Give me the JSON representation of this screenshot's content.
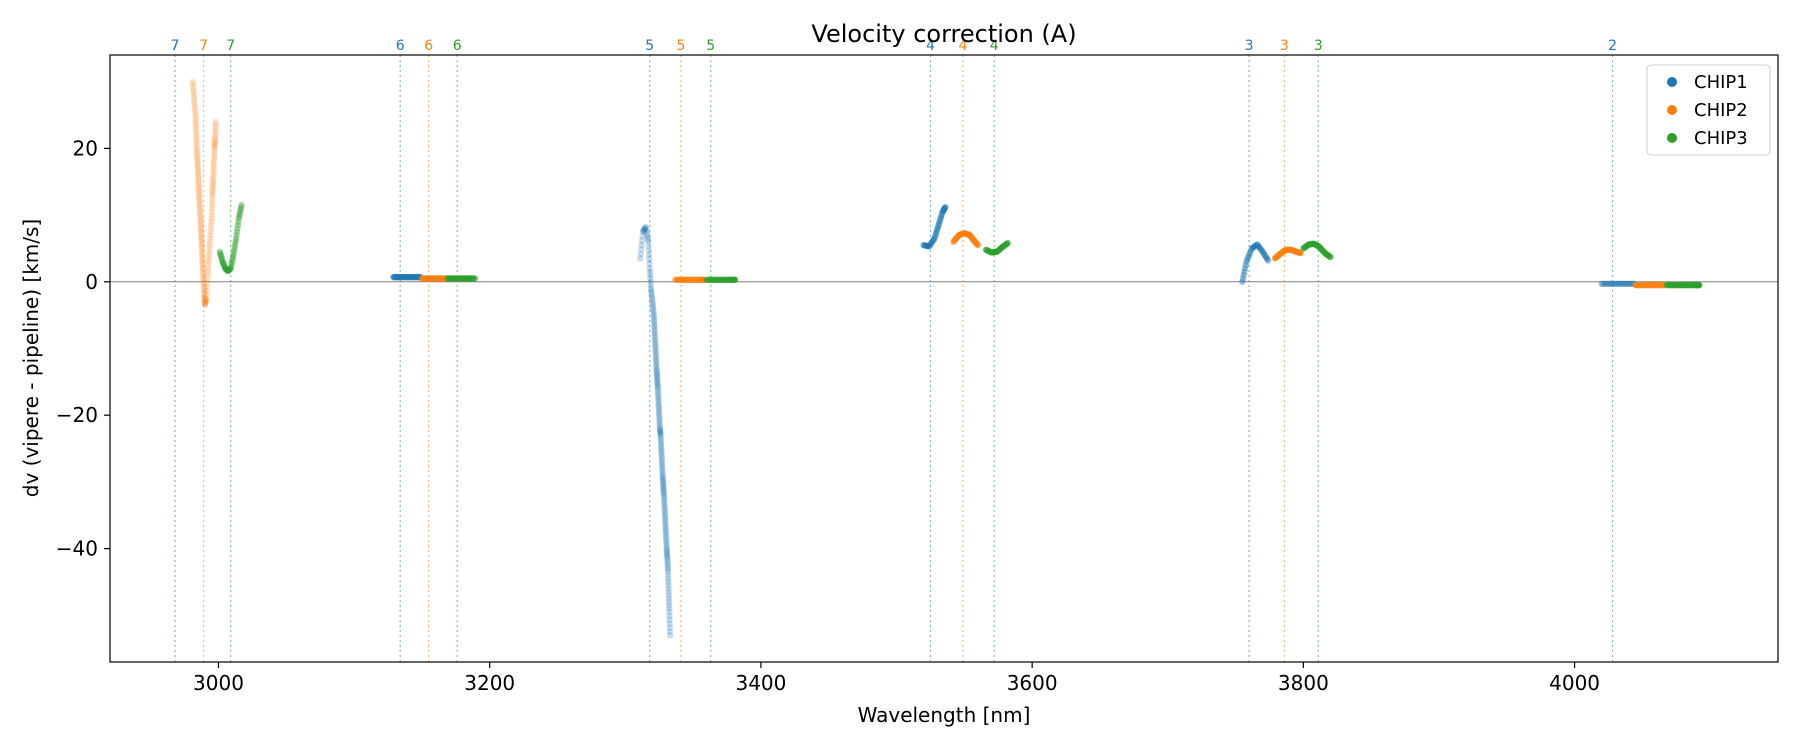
{
  "chart_data": {
    "type": "scatter",
    "title": "Velocity correction (A)",
    "xlabel": "Wavelength [nm]",
    "ylabel": "dv (vipere - pipeline) [km/s]",
    "xlim": [
      2920,
      4150
    ],
    "ylim": [
      -57,
      34
    ],
    "xticks": [
      3000,
      3200,
      3400,
      3600,
      3800,
      4000
    ],
    "xtick_labels": [
      "3000",
      "3200",
      "3400",
      "3600",
      "3800",
      "4000"
    ],
    "yticks": [
      -40,
      -20,
      0,
      20
    ],
    "ytick_labels": [
      "−40",
      "−20",
      "0",
      "20"
    ],
    "zero_line": 0,
    "legend": {
      "placement": "top-right",
      "entries": [
        "CHIP1",
        "CHIP2",
        "CHIP3"
      ]
    },
    "colors": {
      "CHIP1": "#1f77b4",
      "CHIP2": "#ff7f0e",
      "CHIP3": "#2ca02c",
      "zero_line": "#808080"
    },
    "order_markers": [
      {
        "order": "7",
        "chip": "CHIP1",
        "wavelength": 2968
      },
      {
        "order": "7",
        "chip": "CHIP2",
        "wavelength": 2989
      },
      {
        "order": "7",
        "chip": "CHIP3",
        "wavelength": 3009
      },
      {
        "order": "6",
        "chip": "CHIP1",
        "wavelength": 3134
      },
      {
        "order": "6",
        "chip": "CHIP2",
        "wavelength": 3155
      },
      {
        "order": "6",
        "chip": "CHIP3",
        "wavelength": 3176
      },
      {
        "order": "5",
        "chip": "CHIP1",
        "wavelength": 3318
      },
      {
        "order": "5",
        "chip": "CHIP2",
        "wavelength": 3341
      },
      {
        "order": "5",
        "chip": "CHIP3",
        "wavelength": 3363
      },
      {
        "order": "4",
        "chip": "CHIP1",
        "wavelength": 3525
      },
      {
        "order": "4",
        "chip": "CHIP2",
        "wavelength": 3549
      },
      {
        "order": "4",
        "chip": "CHIP3",
        "wavelength": 3572
      },
      {
        "order": "3",
        "chip": "CHIP1",
        "wavelength": 3760
      },
      {
        "order": "3",
        "chip": "CHIP2",
        "wavelength": 3786
      },
      {
        "order": "3",
        "chip": "CHIP3",
        "wavelength": 3811
      },
      {
        "order": "2",
        "chip": "CHIP1",
        "wavelength": 4028
      }
    ],
    "series": [
      {
        "name": "CHIP1",
        "segments": [
          {
            "opacity": 0.6,
            "points": [
              [
                3129,
                0.7
              ],
              [
                3134,
                0.7
              ],
              [
                3139,
                0.7
              ],
              [
                3144,
                0.7
              ],
              [
                3149,
                0.7
              ]
            ]
          },
          {
            "opacity": 0.25,
            "points": [
              [
                3311,
                3.5
              ],
              [
                3313,
                7.5
              ],
              [
                3315,
                8.2
              ],
              [
                3317,
                6
              ],
              [
                3318,
                2
              ],
              [
                3319,
                -1
              ],
              [
                3320,
                -3
              ],
              [
                3321,
                -5
              ],
              [
                3321.5,
                -7
              ],
              [
                3322,
                -9
              ],
              [
                3322.5,
                -11
              ],
              [
                3323,
                -13
              ],
              [
                3323.5,
                -14.5
              ],
              [
                3324,
                -16
              ],
              [
                3324.5,
                -18
              ],
              [
                3325,
                -20
              ],
              [
                3325.5,
                -22
              ],
              [
                3326,
                -23
              ],
              [
                3326.5,
                -25
              ],
              [
                3327,
                -27
              ],
              [
                3327.5,
                -29
              ],
              [
                3328,
                -30.5
              ],
              [
                3328.5,
                -32
              ],
              [
                3329,
                -34
              ],
              [
                3329.5,
                -36
              ],
              [
                3330,
                -38
              ],
              [
                3330.5,
                -40
              ],
              [
                3331,
                -41.5
              ],
              [
                3331.5,
                -43.5
              ],
              [
                3332,
                -46.5
              ],
              [
                3332.5,
                -49.5
              ],
              [
                3333,
                -53
              ]
            ]
          },
          {
            "opacity": 0.5,
            "points": [
              [
                3520,
                5.5
              ],
              [
                3524,
                5.3
              ],
              [
                3528,
                6.5
              ],
              [
                3531,
                8.5
              ],
              [
                3534,
                10.5
              ],
              [
                3536,
                11.2
              ]
            ]
          },
          {
            "opacity": 0.45,
            "points": [
              [
                3755,
                0
              ],
              [
                3758,
                3
              ],
              [
                3762,
                5
              ],
              [
                3766,
                5.6
              ],
              [
                3770,
                4.5
              ],
              [
                3774,
                3.2
              ]
            ]
          },
          {
            "opacity": 0.45,
            "points": [
              [
                4020,
                -0.3
              ],
              [
                4028,
                -0.3
              ],
              [
                4036,
                -0.3
              ],
              [
                4044,
                -0.3
              ]
            ]
          }
        ]
      },
      {
        "name": "CHIP2",
        "segments": [
          {
            "opacity": 0.2,
            "points": [
              [
                2981,
                30
              ],
              [
                2982,
                27.5
              ],
              [
                2983,
                25
              ],
              [
                2983.5,
                22.5
              ],
              [
                2984,
                20
              ],
              [
                2984.5,
                18
              ],
              [
                2985,
                16
              ],
              [
                2985.5,
                14
              ],
              [
                2986,
                12
              ],
              [
                2986.5,
                10
              ],
              [
                2987,
                8
              ],
              [
                2987.5,
                6
              ],
              [
                2988,
                4
              ],
              [
                2988.5,
                2
              ],
              [
                2989,
                0
              ],
              [
                2989.5,
                -2
              ],
              [
                2990,
                -3.5
              ],
              [
                2991,
                -2.5
              ],
              [
                2992,
                1
              ],
              [
                2993,
                4
              ],
              [
                2994,
                7
              ],
              [
                2995,
                10
              ],
              [
                2995.5,
                13
              ],
              [
                2996,
                15
              ],
              [
                2996.5,
                17.5
              ],
              [
                2997,
                20
              ],
              [
                2997.5,
                21.5
              ],
              [
                2998,
                24
              ]
            ]
          },
          {
            "opacity": 0.6,
            "points": [
              [
                3150,
                0.5
              ],
              [
                3155,
                0.5
              ],
              [
                3160,
                0.5
              ],
              [
                3165,
                0.5
              ],
              [
                3170,
                0.5
              ]
            ]
          },
          {
            "opacity": 0.6,
            "points": [
              [
                3337,
                0.3
              ],
              [
                3343,
                0.3
              ],
              [
                3349,
                0.3
              ],
              [
                3355,
                0.3
              ],
              [
                3358,
                0.3
              ]
            ]
          },
          {
            "opacity": 0.6,
            "points": [
              [
                3542,
                6
              ],
              [
                3546,
                7
              ],
              [
                3550,
                7.3
              ],
              [
                3554,
                7
              ],
              [
                3557,
                6.2
              ],
              [
                3560,
                5.5
              ]
            ]
          },
          {
            "opacity": 0.6,
            "points": [
              [
                3779,
                3.5
              ],
              [
                3783,
                4.2
              ],
              [
                3787,
                4.8
              ],
              [
                3791,
                4.8
              ],
              [
                3795,
                4.5
              ],
              [
                3798,
                4.3
              ]
            ]
          },
          {
            "opacity": 0.7,
            "points": [
              [
                4045,
                -0.5
              ],
              [
                4052,
                -0.5
              ],
              [
                4059,
                -0.5
              ],
              [
                4066,
                -0.5
              ]
            ]
          }
        ]
      },
      {
        "name": "CHIP3",
        "segments": [
          {
            "opacity": 0.4,
            "points": [
              [
                3001,
                4.5
              ],
              [
                3003,
                3
              ],
              [
                3005,
                2
              ],
              [
                3007,
                1.6
              ],
              [
                3009,
                2
              ],
              [
                3011,
                4
              ],
              [
                3013,
                6.5
              ],
              [
                3015,
                9.5
              ],
              [
                3017,
                11.5
              ]
            ]
          },
          {
            "opacity": 0.6,
            "points": [
              [
                3169,
                0.5
              ],
              [
                3174,
                0.5
              ],
              [
                3179,
                0.5
              ],
              [
                3184,
                0.5
              ],
              [
                3189,
                0.5
              ]
            ]
          },
          {
            "opacity": 0.6,
            "points": [
              [
                3360,
                0.3
              ],
              [
                3366,
                0.3
              ],
              [
                3372,
                0.3
              ],
              [
                3378,
                0.3
              ],
              [
                3381,
                0.3
              ]
            ]
          },
          {
            "opacity": 0.6,
            "points": [
              [
                3566,
                4.8
              ],
              [
                3570,
                4.4
              ],
              [
                3574,
                4.5
              ],
              [
                3578,
                5.2
              ],
              [
                3582,
                5.8
              ]
            ]
          },
          {
            "opacity": 0.6,
            "points": [
              [
                3800,
                5
              ],
              [
                3804,
                5.6
              ],
              [
                3808,
                5.7
              ],
              [
                3812,
                5.2
              ],
              [
                3816,
                4.3
              ],
              [
                3820,
                3.7
              ]
            ]
          },
          {
            "opacity": 0.7,
            "points": [
              [
                4068,
                -0.5
              ],
              [
                4075,
                -0.5
              ],
              [
                4082,
                -0.5
              ],
              [
                4089,
                -0.5
              ],
              [
                4092,
                -0.5
              ]
            ]
          }
        ]
      }
    ]
  }
}
